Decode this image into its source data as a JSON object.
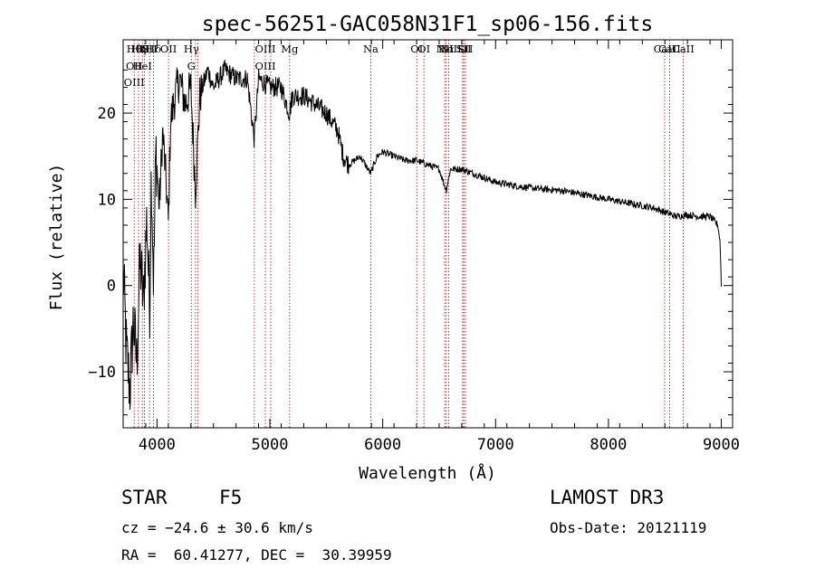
{
  "chart_data": {
    "type": "line",
    "title": "spec-56251-GAC058N31F1_sp06-156.fits",
    "xlabel": "Wavelength (Å)",
    "ylabel": "Flux (relative)",
    "xlim": [
      3700,
      9100
    ],
    "ylim": [
      -16.5,
      28.5
    ],
    "xticks": [
      4000,
      5000,
      6000,
      7000,
      8000,
      9000
    ],
    "yticks": [
      -10,
      0,
      10,
      20
    ],
    "xtick_labels": [
      "4000",
      "5000",
      "6000",
      "7000",
      "8000",
      "9000"
    ],
    "ytick_labels": [
      "−10",
      "0",
      "10",
      "20"
    ],
    "spectrum_knots": [
      [
        3700,
        2
      ],
      [
        3730,
        -8
      ],
      [
        3760,
        -12
      ],
      [
        3790,
        -4
      ],
      [
        3820,
        -9
      ],
      [
        3850,
        3
      ],
      [
        3880,
        -2
      ],
      [
        3910,
        8
      ],
      [
        3935,
        -3
      ],
      [
        3950,
        14
      ],
      [
        3970,
        0
      ],
      [
        3990,
        16
      ],
      [
        4020,
        9
      ],
      [
        4050,
        18
      ],
      [
        4080,
        12
      ],
      [
        4101,
        7
      ],
      [
        4120,
        19
      ],
      [
        4160,
        22
      ],
      [
        4200,
        24
      ],
      [
        4250,
        21
      ],
      [
        4300,
        23
      ],
      [
        4340,
        11
      ],
      [
        4380,
        22
      ],
      [
        4450,
        25
      ],
      [
        4500,
        23
      ],
      [
        4600,
        25
      ],
      [
        4700,
        24
      ],
      [
        4800,
        24
      ],
      [
        4861,
        17
      ],
      [
        4900,
        24
      ],
      [
        5000,
        23
      ],
      [
        5100,
        23
      ],
      [
        5173,
        20
      ],
      [
        5200,
        22
      ],
      [
        5300,
        22
      ],
      [
        5400,
        21
      ],
      [
        5500,
        20
      ],
      [
        5600,
        18
      ],
      [
        5650,
        15
      ],
      [
        5700,
        14
      ],
      [
        5800,
        15
      ],
      [
        5893,
        13
      ],
      [
        5950,
        15
      ],
      [
        6000,
        15.5
      ],
      [
        6100,
        15
      ],
      [
        6200,
        14.5
      ],
      [
        6300,
        14.5
      ],
      [
        6400,
        14
      ],
      [
        6500,
        13.5
      ],
      [
        6563,
        11
      ],
      [
        6600,
        13.5
      ],
      [
        6700,
        13.5
      ],
      [
        6800,
        13
      ],
      [
        6900,
        12.5
      ],
      [
        7000,
        12
      ],
      [
        7200,
        11.5
      ],
      [
        7400,
        11.2
      ],
      [
        7600,
        11
      ],
      [
        7800,
        10.5
      ],
      [
        8000,
        10
      ],
      [
        8200,
        9.5
      ],
      [
        8400,
        9
      ],
      [
        8500,
        8.5
      ],
      [
        8600,
        8
      ],
      [
        8700,
        8.2
      ],
      [
        8800,
        8
      ],
      [
        8900,
        8
      ],
      [
        8970,
        7
      ],
      [
        8990,
        5
      ],
      [
        9000,
        0
      ]
    ],
    "lines": [
      {
        "wave": 3798,
        "labels": [
          "Hθ",
          "OII",
          "OIII"
        ]
      },
      {
        "wave": 3836,
        "labels": [
          "Hη"
        ]
      },
      {
        "wave": 3870,
        "labels": [
          "K",
          "HeI"
        ]
      },
      {
        "wave": 3889,
        "labels": [
          "H"
        ]
      },
      {
        "wave": 3934,
        "labels": [
          "SII"
        ]
      },
      {
        "wave": 3969,
        "labels": [
          "Hδ"
        ]
      },
      {
        "wave": 4102,
        "labels": [
          "OII"
        ]
      },
      {
        "wave": 4304,
        "labels": [
          "Hγ",
          "G"
        ]
      },
      {
        "wave": 4341,
        "labels": []
      },
      {
        "wave": 4363,
        "labels": []
      },
      {
        "wave": 4862,
        "labels": []
      },
      {
        "wave": 4960,
        "labels": [
          "OIII",
          "OIII"
        ]
      },
      {
        "wave": 5008,
        "labels": []
      },
      {
        "wave": 5175,
        "labels": [
          "Mg"
        ]
      },
      {
        "wave": 5894,
        "labels": [
          "Na"
        ]
      },
      {
        "wave": 6302,
        "labels": [
          "OI"
        ]
      },
      {
        "wave": 6365,
        "labels": [
          "OI"
        ]
      },
      {
        "wave": 6550,
        "labels": [
          "NII"
        ]
      },
      {
        "wave": 6563,
        "labels": [
          "Hα"
        ]
      },
      {
        "wave": 6585,
        "labels": [
          "NII"
        ]
      },
      {
        "wave": 6708,
        "labels": [
          "Li"
        ]
      },
      {
        "wave": 6718,
        "labels": [
          "SII"
        ]
      },
      {
        "wave": 6733,
        "labels": [
          "SII"
        ]
      },
      {
        "wave": 8498,
        "labels": [
          "CaII"
        ]
      },
      {
        "wave": 8542,
        "labels": [
          "CaII"
        ]
      },
      {
        "wave": 8662,
        "labels": [
          "CaII"
        ]
      }
    ]
  },
  "info": {
    "object_class": "STAR",
    "subclass": "F5",
    "survey": "LAMOST DR3",
    "redshift": "cz = −24.6 ± 30.6 km/s",
    "obs_date": "Obs-Date: 20121119",
    "coords": "RA =  60.41277, DEC =  30.39959"
  }
}
